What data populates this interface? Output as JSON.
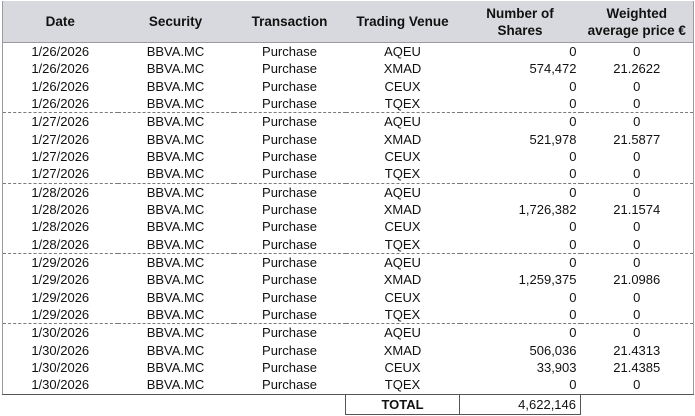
{
  "table": {
    "headers": {
      "date": "Date",
      "security": "Security",
      "transaction": "Transaction",
      "venue": "Trading Venue",
      "shares": "Number of Shares",
      "price": "Weighted average price €"
    },
    "rows": [
      {
        "date": "1/26/2026",
        "security": "BBVA.MC",
        "transaction": "Purchase",
        "venue": "AQEU",
        "shares": "0",
        "price": "0"
      },
      {
        "date": "1/26/2026",
        "security": "BBVA.MC",
        "transaction": "Purchase",
        "venue": "XMAD",
        "shares": "574,472",
        "price": "21.2622"
      },
      {
        "date": "1/26/2026",
        "security": "BBVA.MC",
        "transaction": "Purchase",
        "venue": "CEUX",
        "shares": "0",
        "price": "0"
      },
      {
        "date": "1/26/2026",
        "security": "BBVA.MC",
        "transaction": "Purchase",
        "venue": "TQEX",
        "shares": "0",
        "price": "0"
      },
      {
        "date": "1/27/2026",
        "security": "BBVA.MC",
        "transaction": "Purchase",
        "venue": "AQEU",
        "shares": "0",
        "price": "0"
      },
      {
        "date": "1/27/2026",
        "security": "BBVA.MC",
        "transaction": "Purchase",
        "venue": "XMAD",
        "shares": "521,978",
        "price": "21.5877"
      },
      {
        "date": "1/27/2026",
        "security": "BBVA.MC",
        "transaction": "Purchase",
        "venue": "CEUX",
        "shares": "0",
        "price": "0"
      },
      {
        "date": "1/27/2026",
        "security": "BBVA.MC",
        "transaction": "Purchase",
        "venue": "TQEX",
        "shares": "0",
        "price": "0"
      },
      {
        "date": "1/28/2026",
        "security": "BBVA.MC",
        "transaction": "Purchase",
        "venue": "AQEU",
        "shares": "0",
        "price": "0"
      },
      {
        "date": "1/28/2026",
        "security": "BBVA.MC",
        "transaction": "Purchase",
        "venue": "XMAD",
        "shares": "1,726,382",
        "price": "21.1574"
      },
      {
        "date": "1/28/2026",
        "security": "BBVA.MC",
        "transaction": "Purchase",
        "venue": "CEUX",
        "shares": "0",
        "price": "0"
      },
      {
        "date": "1/28/2026",
        "security": "BBVA.MC",
        "transaction": "Purchase",
        "venue": "TQEX",
        "shares": "0",
        "price": "0"
      },
      {
        "date": "1/29/2026",
        "security": "BBVA.MC",
        "transaction": "Purchase",
        "venue": "AQEU",
        "shares": "0",
        "price": "0"
      },
      {
        "date": "1/29/2026",
        "security": "BBVA.MC",
        "transaction": "Purchase",
        "venue": "XMAD",
        "shares": "1,259,375",
        "price": "21.0986"
      },
      {
        "date": "1/29/2026",
        "security": "BBVA.MC",
        "transaction": "Purchase",
        "venue": "CEUX",
        "shares": "0",
        "price": "0"
      },
      {
        "date": "1/29/2026",
        "security": "BBVA.MC",
        "transaction": "Purchase",
        "venue": "TQEX",
        "shares": "0",
        "price": "0"
      },
      {
        "date": "1/30/2026",
        "security": "BBVA.MC",
        "transaction": "Purchase",
        "venue": "AQEU",
        "shares": "0",
        "price": "0"
      },
      {
        "date": "1/30/2026",
        "security": "BBVA.MC",
        "transaction": "Purchase",
        "venue": "XMAD",
        "shares": "506,036",
        "price": "21.4313"
      },
      {
        "date": "1/30/2026",
        "security": "BBVA.MC",
        "transaction": "Purchase",
        "venue": "CEUX",
        "shares": "33,903",
        "price": "21.4385"
      },
      {
        "date": "1/30/2026",
        "security": "BBVA.MC",
        "transaction": "Purchase",
        "venue": "TQEX",
        "shares": "0",
        "price": "0"
      }
    ],
    "total": {
      "label": "TOTAL",
      "value": "4,622,146"
    }
  }
}
